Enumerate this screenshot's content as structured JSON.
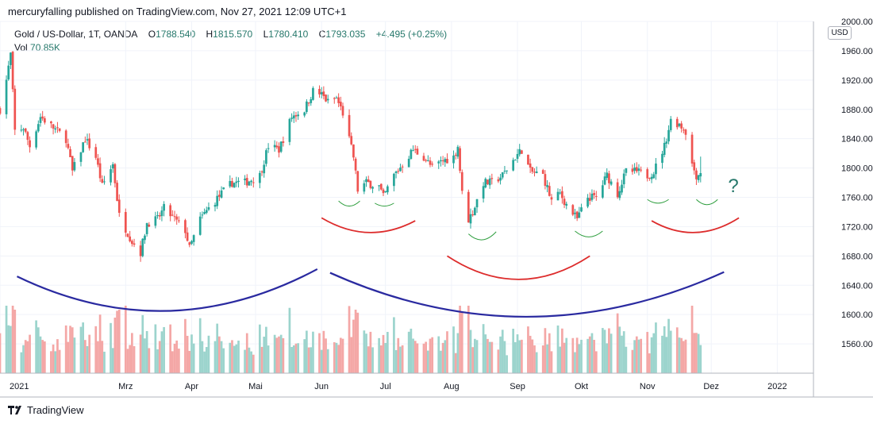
{
  "header": {
    "published": "mercuryfalling published on TradingView.com, Nov 27, 2021 12:09 UTC+1"
  },
  "legend": {
    "symbol": "Gold",
    "pair": "/ US-Dollar, 1T, OANDA",
    "open_label": "O",
    "open": "1788.540",
    "high_label": "H",
    "high": "1815.570",
    "low_label": "L",
    "low": "1780.410",
    "close_label": "C",
    "close": "1793.035",
    "change": "+4.495 (+0.25%)",
    "vol_label": "Vol",
    "vol": "70.85K"
  },
  "currency_badge": "USD",
  "annotation": "?",
  "footer": {
    "brand": "TradingView"
  },
  "colors": {
    "up": "#26a69a",
    "down": "#ef5350",
    "vol_up": "#9cd4cd",
    "vol_down": "#f4a7a6",
    "arc_blue": "#2a2aa0",
    "arc_red": "#dd2c2c",
    "arc_green": "#2e9e3e",
    "question": "#26786b",
    "grid": "#f0f3fa",
    "axis": "#b2b5be"
  },
  "chart_data": {
    "type": "candlestick",
    "y_axis": {
      "min": 1520,
      "max": 2000,
      "ticks": [
        "2000.000",
        "1960.000",
        "1920.000",
        "1880.000",
        "1840.000",
        "1800.000",
        "1760.000",
        "1720.000",
        "1680.000",
        "1640.000",
        "1600.000",
        "1560.000"
      ]
    },
    "x_axis": {
      "start": "2021-01-01",
      "end": "2022-01-18",
      "ticks": [
        {
          "label": "2021",
          "date": "2021-01-01"
        },
        {
          "label": "Mrz",
          "date": "2021-03-01"
        },
        {
          "label": "Apr",
          "date": "2021-04-01"
        },
        {
          "label": "Mai",
          "date": "2021-05-01"
        },
        {
          "label": "Jun",
          "date": "2021-06-01"
        },
        {
          "label": "Jul",
          "date": "2021-07-01"
        },
        {
          "label": "Aug",
          "date": "2021-08-01"
        },
        {
          "label": "Sep",
          "date": "2021-09-01"
        },
        {
          "label": "Okt",
          "date": "2021-10-01"
        },
        {
          "label": "Nov",
          "date": "2021-11-01"
        },
        {
          "label": "Dez",
          "date": "2021-12-01"
        },
        {
          "label": "2022",
          "date": "2022-01-01"
        }
      ]
    },
    "price_path": [
      [
        "2021-01-01",
        1880
      ],
      [
        "2021-01-04",
        1920
      ],
      [
        "2021-01-06",
        1955
      ],
      [
        "2021-01-08",
        1850
      ],
      [
        "2021-01-12",
        1855
      ],
      [
        "2021-01-15",
        1830
      ],
      [
        "2021-01-20",
        1870
      ],
      [
        "2021-01-26",
        1855
      ],
      [
        "2021-02-01",
        1840
      ],
      [
        "2021-02-04",
        1795
      ],
      [
        "2021-02-10",
        1840
      ],
      [
        "2021-02-15",
        1815
      ],
      [
        "2021-02-18",
        1775
      ],
      [
        "2021-02-23",
        1805
      ],
      [
        "2021-02-26",
        1735
      ],
      [
        "2021-03-04",
        1700
      ],
      [
        "2021-03-08",
        1685
      ],
      [
        "2021-03-11",
        1725
      ],
      [
        "2021-03-16",
        1730
      ],
      [
        "2021-03-19",
        1745
      ],
      [
        "2021-03-24",
        1730
      ],
      [
        "2021-03-29",
        1715
      ],
      [
        "2021-03-31",
        1690
      ],
      [
        "2021-04-05",
        1730
      ],
      [
        "2021-04-09",
        1745
      ],
      [
        "2021-04-15",
        1765
      ],
      [
        "2021-04-20",
        1780
      ],
      [
        "2021-04-26",
        1780
      ],
      [
        "2021-05-03",
        1790
      ],
      [
        "2021-05-07",
        1830
      ],
      [
        "2021-05-12",
        1825
      ],
      [
        "2021-05-18",
        1870
      ],
      [
        "2021-05-24",
        1880
      ],
      [
        "2021-05-28",
        1905
      ],
      [
        "2021-06-01",
        1900
      ],
      [
        "2021-06-04",
        1890
      ],
      [
        "2021-06-08",
        1895
      ],
      [
        "2021-06-11",
        1875
      ],
      [
        "2021-06-16",
        1815
      ],
      [
        "2021-06-18",
        1770
      ],
      [
        "2021-06-22",
        1780
      ],
      [
        "2021-06-28",
        1775
      ],
      [
        "2021-06-30",
        1760
      ],
      [
        "2021-07-05",
        1790
      ],
      [
        "2021-07-09",
        1805
      ],
      [
        "2021-07-14",
        1825
      ],
      [
        "2021-07-19",
        1815
      ],
      [
        "2021-07-23",
        1800
      ],
      [
        "2021-07-28",
        1810
      ],
      [
        "2021-08-02",
        1815
      ],
      [
        "2021-08-04",
        1830
      ],
      [
        "2021-08-06",
        1765
      ],
      [
        "2021-08-09",
        1730
      ],
      [
        "2021-08-11",
        1740
      ],
      [
        "2021-08-16",
        1780
      ],
      [
        "2021-08-20",
        1780
      ],
      [
        "2021-08-25",
        1790
      ],
      [
        "2021-08-31",
        1815
      ],
      [
        "2021-09-03",
        1825
      ],
      [
        "2021-09-07",
        1795
      ],
      [
        "2021-09-13",
        1790
      ],
      [
        "2021-09-17",
        1755
      ],
      [
        "2021-09-21",
        1765
      ],
      [
        "2021-09-24",
        1750
      ],
      [
        "2021-09-29",
        1730
      ],
      [
        "2021-10-04",
        1760
      ],
      [
        "2021-10-08",
        1760
      ],
      [
        "2021-10-13",
        1790
      ],
      [
        "2021-10-18",
        1765
      ],
      [
        "2021-10-22",
        1795
      ],
      [
        "2021-10-27",
        1795
      ],
      [
        "2021-11-01",
        1790
      ],
      [
        "2021-11-04",
        1795
      ],
      [
        "2021-11-09",
        1830
      ],
      [
        "2021-11-12",
        1865
      ],
      [
        "2021-11-16",
        1860
      ],
      [
        "2021-11-19",
        1850
      ],
      [
        "2021-11-22",
        1805
      ],
      [
        "2021-11-24",
        1790
      ],
      [
        "2021-11-26",
        1793
      ]
    ],
    "drawings": [
      {
        "color": "blue",
        "from": [
          "2021-01-09",
          1652
        ],
        "to": [
          "2021-05-30",
          1662
        ],
        "dip": 1605
      },
      {
        "color": "blue",
        "from": [
          "2021-06-05",
          1657
        ],
        "to": [
          "2021-12-07",
          1658
        ],
        "dip": 1597
      },
      {
        "color": "red",
        "from": [
          "2021-06-01",
          1732
        ],
        "to": [
          "2021-07-15",
          1728
        ],
        "dip": 1712
      },
      {
        "color": "red",
        "from": [
          "2021-07-30",
          1680
        ],
        "to": [
          "2021-10-05",
          1680
        ],
        "dip": 1648
      },
      {
        "color": "red",
        "from": [
          "2021-11-03",
          1728
        ],
        "to": [
          "2021-12-14",
          1732
        ],
        "dip": 1712
      },
      {
        "color": "green",
        "from": [
          "2021-06-09",
          1755
        ],
        "to": [
          "2021-06-19",
          1755
        ],
        "dip": 1748
      },
      {
        "color": "green",
        "from": [
          "2021-06-26",
          1752
        ],
        "to": [
          "2021-07-05",
          1752
        ],
        "dip": 1748
      },
      {
        "color": "green",
        "from": [
          "2021-08-09",
          1710
        ],
        "to": [
          "2021-08-22",
          1713
        ],
        "dip": 1702
      },
      {
        "color": "green",
        "from": [
          "2021-09-28",
          1714
        ],
        "to": [
          "2021-10-11",
          1714
        ],
        "dip": 1706
      },
      {
        "color": "green",
        "from": [
          "2021-11-01",
          1757
        ],
        "to": [
          "2021-11-11",
          1757
        ],
        "dip": 1752
      },
      {
        "color": "green",
        "from": [
          "2021-11-24",
          1757
        ],
        "to": [
          "2021-12-04",
          1757
        ],
        "dip": 1750
      }
    ]
  }
}
